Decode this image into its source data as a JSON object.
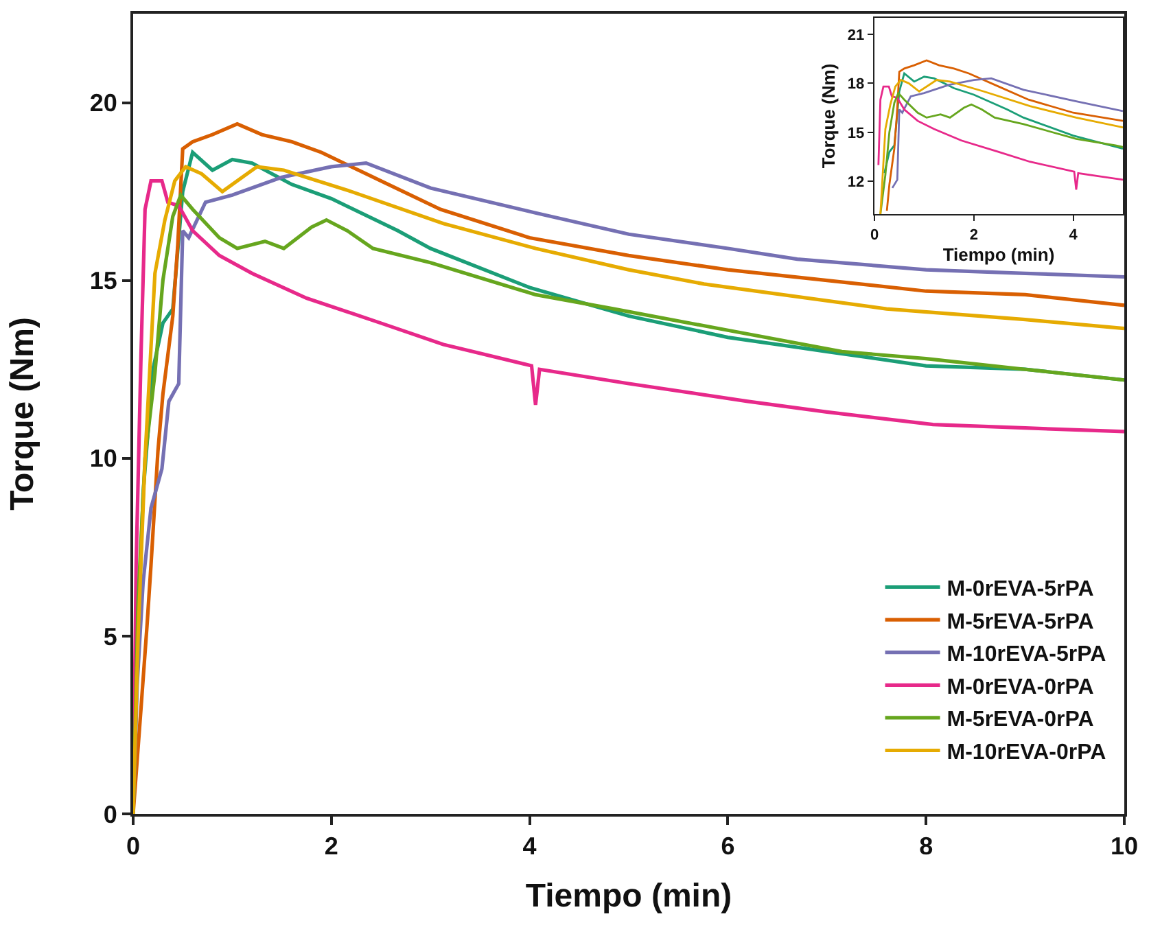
{
  "chart_data": [
    {
      "type": "line",
      "xlabel": "Tiempo (min)",
      "ylabel": "Torque (Nm)",
      "xlim": [
        0,
        10
      ],
      "ylim": [
        0,
        22.5
      ],
      "xticks": [
        0,
        2,
        4,
        6,
        8,
        10
      ],
      "yticks": [
        0,
        5,
        10,
        15,
        20
      ],
      "grid": false,
      "legend": "bottom right",
      "marker": "none",
      "line_style": "solid",
      "series": [
        {
          "name": "M-0rEVA-5rPA",
          "color": "#1b9e77",
          "x": [
            0,
            0.05,
            0.1,
            0.2,
            0.3,
            0.4,
            0.5,
            0.6,
            0.8,
            1.0,
            1.2,
            1.4,
            1.6,
            2,
            2.67,
            3,
            4,
            5,
            6,
            7,
            8,
            9,
            10
          ],
          "values": [
            0,
            5,
            9,
            12.5,
            13.8,
            14.2,
            17.5,
            18.6,
            18.1,
            18.4,
            18.3,
            18.0,
            17.7,
            17.3,
            16.4,
            15.9,
            14.8,
            14.0,
            13.4,
            13.0,
            12.6,
            12.5,
            12.2
          ]
        },
        {
          "name": "M-5rEVA-5rPA",
          "color": "#d95f02",
          "x": [
            0,
            0.08,
            0.14,
            0.18,
            0.25,
            0.3,
            0.4,
            0.45,
            0.5,
            0.6,
            0.8,
            1.05,
            1.3,
            1.6,
            1.9,
            2.5,
            3.1,
            4,
            5,
            6,
            7,
            8,
            9,
            10
          ],
          "values": [
            0,
            3,
            5.3,
            7,
            10.2,
            11.8,
            14,
            16,
            18.7,
            18.9,
            19.1,
            19.4,
            19.1,
            18.9,
            18.6,
            17.8,
            17.0,
            16.2,
            15.7,
            15.3,
            15.0,
            14.7,
            14.6,
            14.3
          ]
        },
        {
          "name": "M-10rEVA-5rPA",
          "color": "#7570b3",
          "x": [
            0,
            0.04,
            0.1,
            0.18,
            0.29,
            0.36,
            0.46,
            0.5,
            0.56,
            0.73,
            1.0,
            1.5,
            2.0,
            2.35,
            3,
            4.06,
            5,
            6,
            6.7,
            8,
            9,
            10
          ],
          "values": [
            0,
            3.6,
            6.5,
            8.6,
            9.7,
            11.6,
            12.1,
            16.4,
            16.2,
            17.2,
            17.4,
            17.9,
            18.2,
            18.3,
            17.6,
            16.9,
            16.3,
            15.9,
            15.6,
            15.3,
            15.2,
            15.1
          ]
        },
        {
          "name": "M-0rEVA-0rPA",
          "color": "#e7298a",
          "x": [
            0,
            0.03,
            0.08,
            0.12,
            0.18,
            0.29,
            0.35,
            0.46,
            0.6,
            0.87,
            1.2,
            1.75,
            2.5,
            3.13,
            4.02,
            4.06,
            4.1,
            5,
            6.2,
            7,
            8.07,
            9,
            10
          ],
          "values": [
            0,
            7,
            13,
            17,
            17.8,
            17.8,
            17.2,
            17.1,
            16.4,
            15.7,
            15.2,
            14.5,
            13.8,
            13.2,
            12.6,
            11.5,
            12.5,
            12.1,
            11.6,
            11.3,
            10.95,
            10.85,
            10.75
          ]
        },
        {
          "name": "M-5rEVA-0rPA",
          "color": "#66a61e",
          "x": [
            0,
            0.05,
            0.12,
            0.22,
            0.3,
            0.4,
            0.48,
            0.6,
            0.87,
            1.05,
            1.33,
            1.52,
            1.8,
            1.95,
            2.16,
            2.42,
            3,
            4.06,
            4.85,
            6,
            7.15,
            8,
            9,
            10
          ],
          "values": [
            0,
            6,
            10,
            12.4,
            15,
            16.8,
            17.4,
            17.0,
            16.2,
            15.9,
            16.1,
            15.9,
            16.5,
            16.7,
            16.4,
            15.9,
            15.5,
            14.6,
            14.2,
            13.6,
            13.0,
            12.8,
            12.5,
            12.2
          ]
        },
        {
          "name": "M-10rEVA-0rPA",
          "color": "#e6ab02",
          "x": [
            0,
            0.05,
            0.12,
            0.22,
            0.32,
            0.42,
            0.53,
            0.69,
            0.9,
            1.1,
            1.25,
            1.52,
            2.2,
            3.13,
            4.06,
            5,
            5.76,
            7.6,
            9,
            10
          ],
          "values": [
            0,
            5,
            10,
            15.2,
            16.7,
            17.8,
            18.2,
            18.0,
            17.5,
            17.9,
            18.2,
            18.1,
            17.5,
            16.6,
            15.9,
            15.3,
            14.9,
            14.2,
            13.9,
            13.65
          ]
        }
      ]
    },
    {
      "type": "line",
      "xlabel": "Tiempo (min)",
      "ylabel": "Torque (Nm)",
      "xlim": [
        0,
        5
      ],
      "ylim": [
        10,
        22
      ],
      "xticks": [
        0,
        2,
        4
      ],
      "yticks": [
        12,
        15,
        18,
        21
      ],
      "grid": false,
      "legend": false,
      "marker": "none",
      "line_style": "solid",
      "series": [
        {
          "color": "#1b9e77",
          "x": [
            0.2,
            0.3,
            0.4,
            0.5,
            0.6,
            0.8,
            1.0,
            1.2,
            1.4,
            1.6,
            2,
            2.67,
            3,
            4,
            5
          ],
          "values": [
            12.5,
            13.8,
            14.2,
            17.5,
            18.6,
            18.1,
            18.4,
            18.3,
            18.0,
            17.7,
            17.3,
            16.4,
            15.9,
            14.8,
            14.0
          ]
        },
        {
          "color": "#d95f02",
          "x": [
            0.25,
            0.3,
            0.4,
            0.45,
            0.5,
            0.6,
            0.8,
            1.05,
            1.3,
            1.6,
            1.9,
            2.5,
            3.1,
            4,
            5
          ],
          "values": [
            10.2,
            11.8,
            14,
            16,
            18.7,
            18.9,
            19.1,
            19.4,
            19.1,
            18.9,
            18.6,
            17.8,
            17.0,
            16.2,
            15.7
          ]
        },
        {
          "color": "#7570b3",
          "x": [
            0.36,
            0.46,
            0.5,
            0.56,
            0.73,
            1.0,
            1.5,
            2.0,
            2.35,
            3,
            4.06,
            5
          ],
          "values": [
            11.6,
            12.1,
            16.4,
            16.2,
            17.2,
            17.4,
            17.9,
            18.2,
            18.3,
            17.6,
            16.9,
            16.3
          ]
        },
        {
          "color": "#e7298a",
          "x": [
            0.08,
            0.12,
            0.18,
            0.29,
            0.35,
            0.46,
            0.6,
            0.87,
            1.2,
            1.75,
            2.5,
            3.13,
            4.02,
            4.06,
            4.1,
            5
          ],
          "values": [
            13,
            17,
            17.8,
            17.8,
            17.2,
            17.1,
            16.4,
            15.7,
            15.2,
            14.5,
            13.8,
            13.2,
            12.6,
            11.5,
            12.5,
            12.1
          ]
        },
        {
          "color": "#66a61e",
          "x": [
            0.12,
            0.22,
            0.3,
            0.4,
            0.48,
            0.6,
            0.87,
            1.05,
            1.33,
            1.52,
            1.8,
            1.95,
            2.16,
            2.42,
            3,
            4.06,
            4.85,
            5
          ],
          "values": [
            10,
            12.4,
            15,
            16.8,
            17.4,
            17.0,
            16.2,
            15.9,
            16.1,
            15.9,
            16.5,
            16.7,
            16.4,
            15.9,
            15.5,
            14.6,
            14.2,
            14.1
          ]
        },
        {
          "color": "#e6ab02",
          "x": [
            0.12,
            0.22,
            0.32,
            0.42,
            0.53,
            0.69,
            0.9,
            1.1,
            1.25,
            1.52,
            2.2,
            3.13,
            4.06,
            5
          ],
          "values": [
            10,
            15.2,
            16.7,
            17.8,
            18.2,
            18.0,
            17.5,
            17.9,
            18.2,
            18.1,
            17.5,
            16.6,
            15.9,
            15.3
          ]
        }
      ]
    }
  ]
}
